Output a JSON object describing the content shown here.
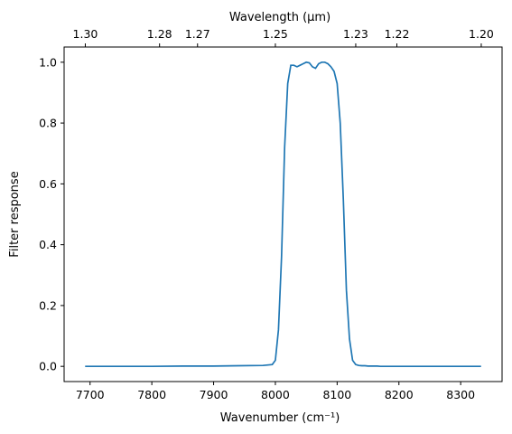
{
  "chart_data": {
    "type": "line",
    "xlabel": "Wavenumber (cm⁻¹)",
    "ylabel": "Filter response",
    "top_xlabel": "Wavelength (μm)",
    "xlim": [
      7658,
      8367
    ],
    "ylim": [
      -0.05,
      1.05
    ],
    "x_ticks": [
      7700,
      7800,
      7900,
      8000,
      8100,
      8200,
      8300
    ],
    "y_ticks": [
      0.0,
      0.2,
      0.4,
      0.6,
      0.8,
      1.0
    ],
    "top_ticks": [
      {
        "wavenumber": 7692.3,
        "label": "1.30"
      },
      {
        "wavenumber": 7812.5,
        "label": "1.28"
      },
      {
        "wavenumber": 7874.0,
        "label": "1.27"
      },
      {
        "wavenumber": 8000.0,
        "label": "1.25"
      },
      {
        "wavenumber": 8130.1,
        "label": "1.23"
      },
      {
        "wavenumber": 8196.7,
        "label": "1.22"
      },
      {
        "wavenumber": 8333.3,
        "label": "1.20"
      }
    ],
    "grid": false,
    "line_color": "#1f77b4",
    "series": [
      {
        "x": [
          7692,
          7750,
          7800,
          7850,
          7900,
          7940,
          7980,
          7995,
          8000,
          8005,
          8010,
          8015,
          8020,
          8025,
          8030,
          8035,
          8040,
          8045,
          8050,
          8055,
          8060,
          8065,
          8070,
          8075,
          8080,
          8085,
          8090,
          8095,
          8100,
          8105,
          8110,
          8115,
          8120,
          8125,
          8130,
          8135,
          8140,
          8145,
          8150,
          8155,
          8160,
          8165,
          8170,
          8175,
          8180,
          8190,
          8200,
          8250,
          8300,
          8333
        ],
        "y": [
          0.0,
          0.0,
          0.0,
          0.001,
          0.001,
          0.002,
          0.003,
          0.006,
          0.02,
          0.12,
          0.36,
          0.72,
          0.93,
          0.99,
          0.99,
          0.985,
          0.99,
          0.995,
          1.0,
          0.998,
          0.985,
          0.98,
          0.995,
          1.0,
          1.0,
          0.995,
          0.985,
          0.97,
          0.93,
          0.8,
          0.55,
          0.25,
          0.09,
          0.02,
          0.006,
          0.003,
          0.002,
          0.002,
          0.001,
          0.001,
          0.001,
          0.001,
          0.0,
          0.0,
          0.0,
          0.0,
          0.0,
          0.0,
          0.0,
          0.0
        ]
      }
    ]
  }
}
